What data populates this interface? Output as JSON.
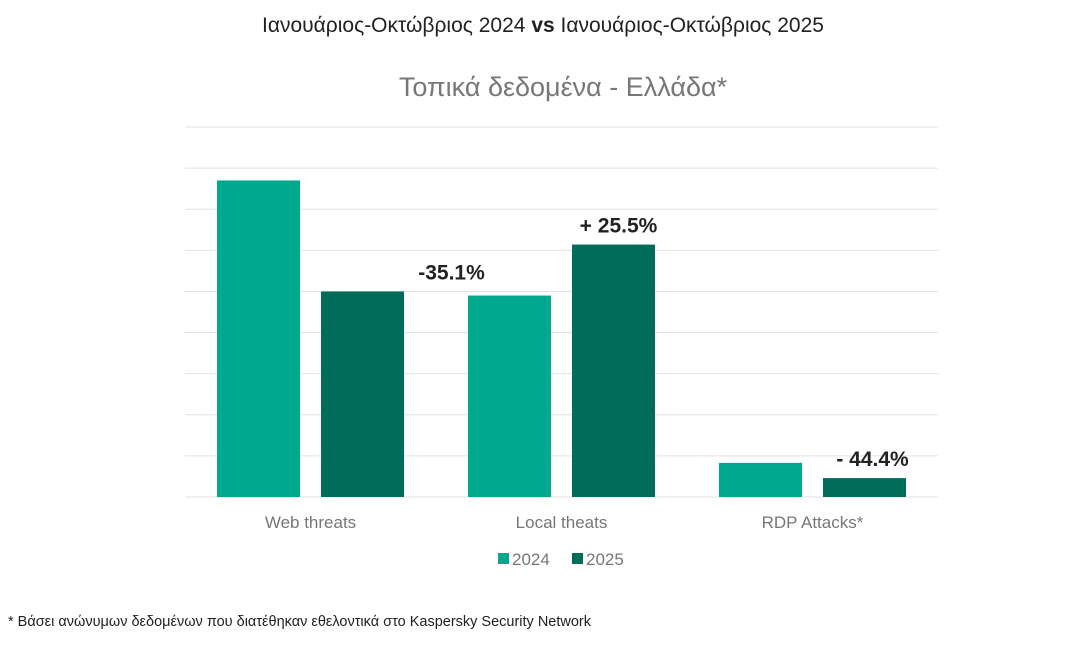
{
  "header": {
    "part1": "Ιανουάριος-Οκτώβριος 2024",
    "vs": "vs",
    "part2": "Ιανουάριος-Οκτώβριος 2025"
  },
  "chart_data": {
    "type": "bar",
    "title": "Τοπικά δεδομένα - Ελλάδα*",
    "categories": [
      "Web threats",
      "Local theats",
      "RDP Attacks*"
    ],
    "series": [
      {
        "name": "2024",
        "color": "#00a88e",
        "values": [
          7.7,
          4.9,
          0.83
        ]
      },
      {
        "name": "2025",
        "color": "#006d5b",
        "values": [
          5.0,
          6.14,
          0.46
        ]
      }
    ],
    "annotations": [
      "-35.1%",
      "+ 25.5%",
      "- 44.4%"
    ],
    "ylim": [
      0,
      9
    ],
    "y_axis_labels": false,
    "grid": true,
    "legend": "bottom"
  },
  "footnote": "* Βάσει ανώνυμων δεδομένων που διατέθηκαν εθελοντικά στο Kaspersky Security Network"
}
